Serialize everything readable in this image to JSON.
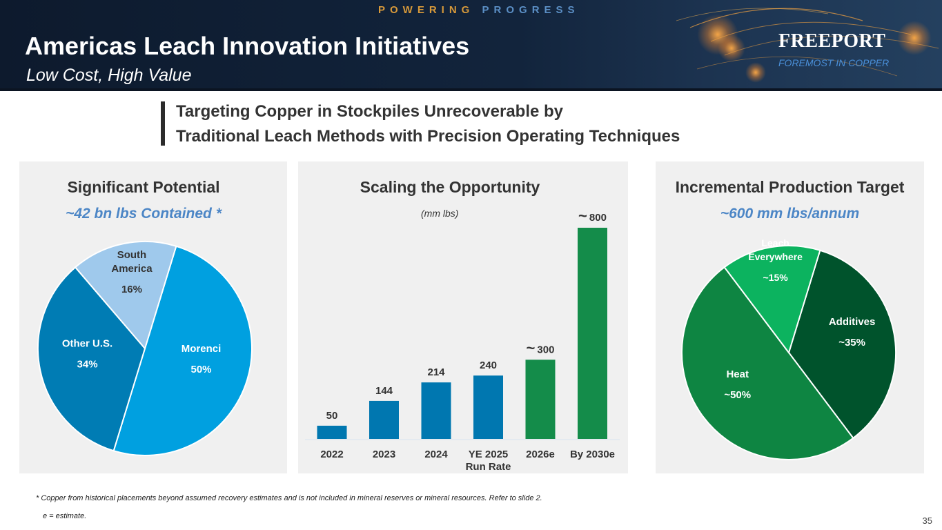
{
  "header": {
    "tagline_part1": "POWERING",
    "tagline_part2": "PROGRESS",
    "title": "Americas Leach Innovation Initiatives",
    "subtitle": "Low Cost, High Value",
    "logo_name": "FREEPORT",
    "logo_tagline": "FOREMOST IN COPPER"
  },
  "banner": {
    "line1": "Targeting Copper in Stockpiles Unrecoverable by",
    "line2": "Traditional Leach Methods with Precision Operating Techniques"
  },
  "colors": {
    "header_bg": "#12243c",
    "blue_accent": "#4c86c6",
    "bar_blue": "#0077b0",
    "bar_green": "#148c4a"
  },
  "chart_data": [
    {
      "type": "pie",
      "title": "Significant Potential",
      "subtitle": "~42 bn lbs Contained *",
      "slices": [
        {
          "label": "Morenci",
          "value": 50,
          "value_label": "50%",
          "color": "#00a0e0"
        },
        {
          "label": "Other U.S.",
          "value": 34,
          "value_label": "34%",
          "color": "#007cb4"
        },
        {
          "label": "South America",
          "value": 16,
          "value_label": "16%",
          "color": "#9fc9ec"
        }
      ]
    },
    {
      "type": "bar",
      "title": "Scaling the Opportunity",
      "unit_label": "(mm lbs)",
      "categories": [
        "2022",
        "2023",
        "2024",
        "YE 2025 Run Rate",
        "2026e",
        "By 2030e"
      ],
      "values": [
        50,
        144,
        214,
        240,
        300,
        800
      ],
      "value_labels": [
        "50",
        "144",
        "214",
        "240",
        "~300",
        "~ 800"
      ],
      "colors": [
        "#0077b0",
        "#0077b0",
        "#0077b0",
        "#0077b0",
        "#148c4a",
        "#148c4a"
      ],
      "ylim": [
        0,
        800
      ]
    },
    {
      "type": "pie",
      "title": "Incremental Production Target",
      "subtitle": "~600 mm lbs/annum",
      "slices": [
        {
          "label": "Additives",
          "value": 35,
          "value_label": "~35%",
          "color": "#00532c"
        },
        {
          "label": "Heat",
          "value": 50,
          "value_label": "~50%",
          "color": "#0e8542"
        },
        {
          "label": "Leach Everywhere",
          "value": 15,
          "value_label": "~15%",
          "color": "#0cb35f"
        }
      ]
    }
  ],
  "footnotes": {
    "note1": "* Copper from historical placements beyond assumed recovery estimates and is not included in mineral reserves or mineral resources. Refer to slide 2.",
    "note2": "e = estimate."
  },
  "page_number": "35"
}
